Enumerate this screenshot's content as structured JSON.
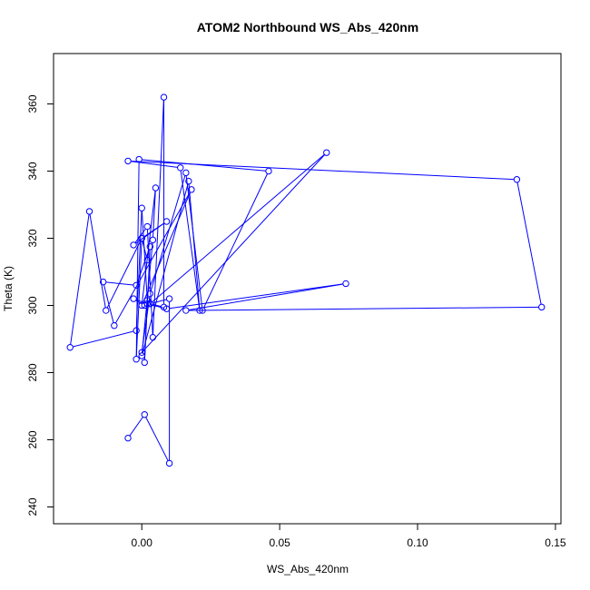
{
  "chart_data": {
    "type": "line",
    "title": "ATOM2 Northbound WS_Abs_420nm",
    "xlabel": "WS_Abs_420nm",
    "ylabel": "Theta (K)",
    "xlim": [
      -0.032,
      0.152
    ],
    "ylim": [
      235,
      375
    ],
    "xticks": [
      0.0,
      0.05,
      0.1,
      0.15
    ],
    "xtick_labels": [
      "0.00",
      "0.05",
      "0.10",
      "0.15"
    ],
    "yticks": [
      240,
      260,
      280,
      300,
      320,
      340,
      360
    ],
    "ytick_labels": [
      "240",
      "260",
      "280",
      "300",
      "320",
      "340",
      "360"
    ],
    "grid": false,
    "line_color": "#0000ff",
    "marker": "open-circle",
    "series": [
      {
        "x": [
          -0.005,
          0.001,
          0.01,
          0.01,
          0.003,
          0.008,
          0.008,
          0.004,
          0.002,
          -0.003,
          0.009,
          0.0,
          -0.013,
          -0.019,
          -0.026,
          -0.002,
          0.0,
          0.002,
          0.001,
          0.003,
          -0.002,
          -0.014,
          -0.01,
          0.018,
          0.0,
          0.005,
          0.004,
          0.0,
          0.017,
          0.021,
          0.014,
          -0.005,
          0.136,
          0.145,
          0.016,
          0.074,
          0.009,
          0.002,
          -0.003,
          0.001,
          0.003,
          0.067,
          0.0,
          0.003,
          0.016,
          0.022,
          0.046,
          -0.001,
          -0.002,
          0.0,
          0.002
        ],
        "y": [
          260.5,
          267.5,
          253.0,
          302.0,
          300.5,
          299.5,
          362.0,
          290.5,
          323.5,
          318.0,
          325.0,
          320.0,
          298.5,
          328.0,
          287.5,
          292.5,
          329.0,
          301.5,
          283.0,
          317.5,
          306.0,
          307.0,
          294.0,
          334.5,
          300.0,
          335.0,
          319.5,
          285.0,
          337.0,
          298.5,
          341.0,
          343.0,
          337.5,
          299.5,
          298.5,
          306.5,
          299.0,
          300.5,
          302.0,
          300.0,
          300.5,
          345.5,
          286.0,
          303.5,
          339.5,
          298.5,
          340.0,
          343.5,
          284.0,
          320.0,
          313.5
        ]
      }
    ]
  }
}
